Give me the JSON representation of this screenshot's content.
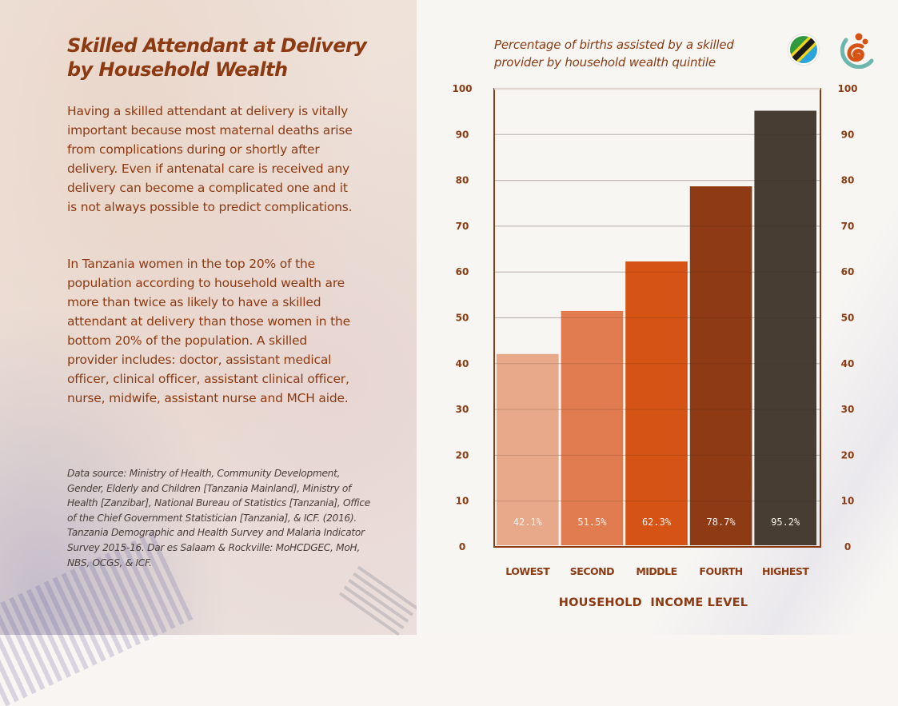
{
  "page": {
    "title": "Skilled Attendant at Delivery by Household Wealth",
    "title_lines": [
      "Skilled Attendant at Delivery",
      "by Household Wealth"
    ],
    "paragraphs": [
      "Having a skilled attendant at delivery is vitally important because most maternal deaths arise from complications during or shortly after delivery. Even if antenatal care is received any delivery can become a complicated one and it is not always possible to predict complications.",
      "In Tanzania women in the top 20% of the population according to household wealth are more than twice as  likely to have a skilled attendant at delivery than those women in the bottom 20% of the population. A skilled provider includes: doctor, assistant medical officer, clinical officer, assistant clinical officer, nurse, midwife, assistant nurse and MCH aide."
    ],
    "source": "Data source: Ministry of Health, Community Development, Gender, Elderly and Children [Tanzania Mainland], Ministry of Health [Zanzibar], National Bureau of Statistics [Tanzania], Office of the Chief Government Statistician [Tanzania], & ICF. (2016). Tanzania Demographic and Health Survey and Malaria Indicator Survey 2015-16. Dar es Salaam & Rockville: MoHCDGEC, MoH, NBS, OCGS, & ICF.",
    "logos": [
      "tanzania-flag-icon",
      "organization-logo-icon"
    ]
  },
  "colors": {
    "text_brown": "#8b3a12",
    "axis_frame": "#8b3a12",
    "grid": "#d9d4cf",
    "bar_colors": [
      "#e8a98b",
      "#e07c50",
      "#d55314",
      "#8e3a14",
      "#473d33"
    ]
  },
  "chart_data": {
    "type": "bar",
    "title": "Percentage of births assisted by a skilled provider by household wealth quintile",
    "title_lines": [
      "Percentage of births assisted by a skilled",
      "provider by household wealth quintile"
    ],
    "categories": [
      "LOWEST",
      "SECOND",
      "MIDDLE",
      "FOURTH",
      "HIGHEST"
    ],
    "values": [
      42.1,
      51.5,
      62.3,
      78.7,
      95.2
    ],
    "value_labels": [
      "42.1%",
      "51.5%",
      "62.3%",
      "78.7%",
      "95.2%"
    ],
    "xlabel": "HOUSEHOLD  INCOME LEVEL",
    "ylabel": "",
    "ylim": [
      0,
      100
    ],
    "yticks": [
      0,
      10,
      20,
      30,
      40,
      50,
      60,
      70,
      80,
      90,
      100
    ],
    "y_axis_sides": [
      "left",
      "right"
    ],
    "grid": true,
    "legend": "none"
  }
}
